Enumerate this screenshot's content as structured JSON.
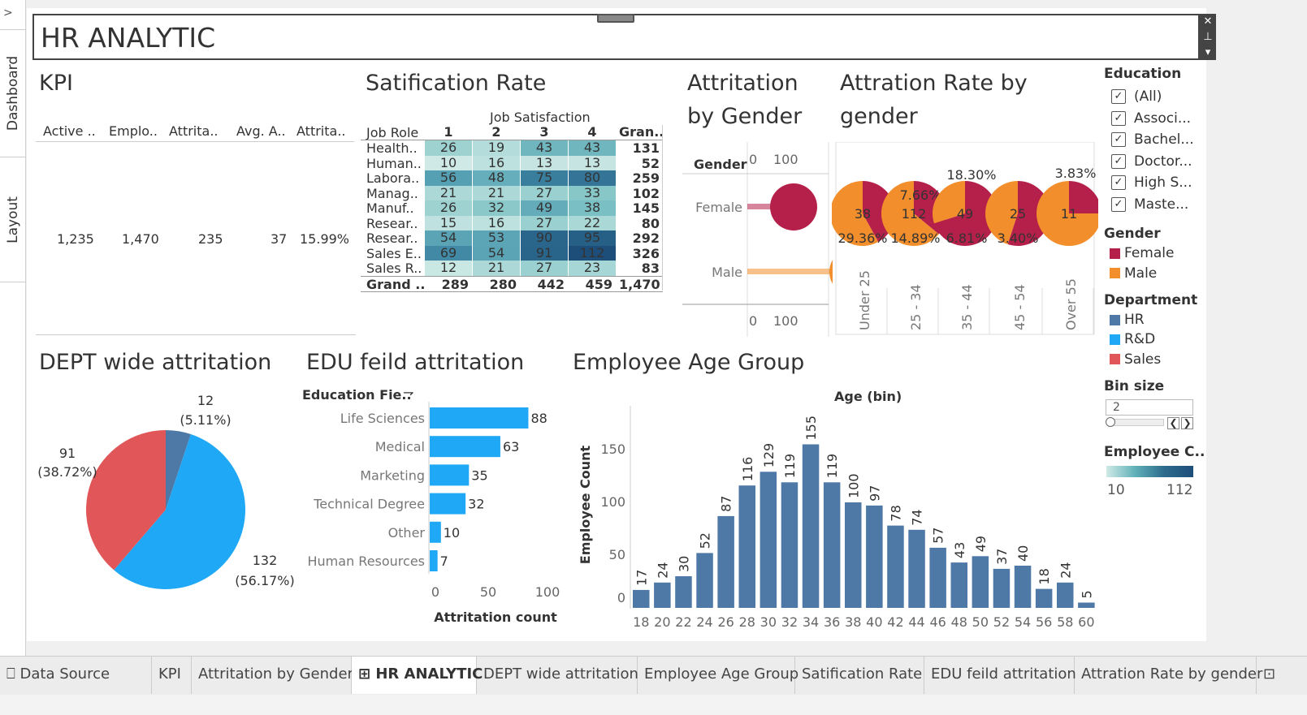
{
  "sidebar": {
    "chevron": ">",
    "tabs": [
      "Dashboard",
      "Layout"
    ]
  },
  "title": "HR ANALYTIC",
  "kpi": {
    "title": "KPI",
    "headers": [
      "Active ..",
      "Emplo..",
      "Attrita..",
      "Avg. A..",
      "Attrita.."
    ],
    "values": [
      "1,235",
      "1,470",
      "235",
      "37",
      "15.99%"
    ]
  },
  "satisfaction": {
    "title": "Satification Rate",
    "col_header": "Job Satisfaction",
    "row_header": "Job Role",
    "columns": [
      "1",
      "2",
      "3",
      "4",
      "Gran.."
    ],
    "rows": [
      {
        "label": "Health..",
        "values": [
          26,
          19,
          43,
          43
        ],
        "total": "131"
      },
      {
        "label": "Human..",
        "values": [
          10,
          16,
          13,
          13
        ],
        "total": "52"
      },
      {
        "label": "Labora..",
        "values": [
          56,
          48,
          75,
          80
        ],
        "total": "259"
      },
      {
        "label": "Manag..",
        "values": [
          21,
          21,
          27,
          33
        ],
        "total": "102"
      },
      {
        "label": "Manuf..",
        "values": [
          26,
          32,
          49,
          38
        ],
        "total": "145"
      },
      {
        "label": "Resear..",
        "values": [
          15,
          16,
          27,
          22
        ],
        "total": "80"
      },
      {
        "label": "Resear..",
        "values": [
          54,
          53,
          90,
          95
        ],
        "total": "292"
      },
      {
        "label": "Sales E..",
        "values": [
          69,
          54,
          91,
          112
        ],
        "total": "326"
      },
      {
        "label": "Sales R..",
        "values": [
          12,
          21,
          27,
          23
        ],
        "total": "83"
      }
    ],
    "grand": {
      "label": "Grand ..",
      "values": [
        "289",
        "280",
        "442",
        "459"
      ],
      "total": "1,470"
    }
  },
  "gender_attr": {
    "title_line1": "Attritation",
    "title_line2": "by Gender",
    "axis_title": "Gender",
    "rows": [
      "Female",
      "Male"
    ],
    "ticks": [
      "0",
      "100"
    ]
  },
  "age_gender": {
    "title_line1": "Attration Rate by",
    "title_line2": "gender",
    "groups": [
      {
        "label": "Under 25",
        "total": "38",
        "female_pct": "",
        "male_pct": "29.36%"
      },
      {
        "label": "25 - 34",
        "total": "112",
        "female_pct": "7.66%",
        "male_pct": "14.89%"
      },
      {
        "label": "35 - 44",
        "total": "49",
        "female_pct": "18.30%",
        "male_pct": "6.81%"
      },
      {
        "label": "45 - 54",
        "total": "25",
        "female_pct": "",
        "male_pct": "3.40%"
      },
      {
        "label": "Over 55",
        "total": "11",
        "female_pct": "3.83%",
        "male_pct": ""
      }
    ]
  },
  "dept": {
    "title": "DEPT wide attritation",
    "slices": [
      {
        "name": "HR",
        "value": 12,
        "pct": "(5.11%)",
        "color": "#4e79a7"
      },
      {
        "name": "R&D",
        "value": 132,
        "pct": "(56.17%)",
        "color": "#1fa8f5"
      },
      {
        "name": "Sales",
        "value": 91,
        "pct": "(38.72%)",
        "color": "#e15759"
      }
    ]
  },
  "edu": {
    "title": "EDU feild attritation",
    "axis_header": "Education Fie..",
    "xlabel": "Attritation count",
    "ticks": [
      "0",
      "50",
      "100"
    ],
    "bars": [
      {
        "label": "Life Sciences",
        "value": 88
      },
      {
        "label": "Medical",
        "value": 63
      },
      {
        "label": "Marketing",
        "value": 35
      },
      {
        "label": "Technical Degree",
        "value": 32
      },
      {
        "label": "Other",
        "value": 10
      },
      {
        "label": "Human Resources",
        "value": 7
      }
    ]
  },
  "age": {
    "title": "Employee Age Group",
    "header": "Age (bin)",
    "ylabel": "Employee Count",
    "yticks": [
      "0",
      "50",
      "100",
      "150"
    ]
  },
  "chart_data": [
    {
      "type": "bar",
      "title": "Employee Age Group",
      "xlabel": "Age (bin)",
      "ylabel": "Employee Count",
      "categories": [
        "18",
        "20",
        "22",
        "24",
        "26",
        "28",
        "30",
        "32",
        "34",
        "36",
        "38",
        "40",
        "42",
        "44",
        "46",
        "48",
        "50",
        "52",
        "54",
        "56",
        "58",
        "60"
      ],
      "values": [
        17,
        24,
        30,
        52,
        87,
        116,
        129,
        119,
        155,
        119,
        100,
        97,
        78,
        74,
        57,
        43,
        49,
        37,
        40,
        18,
        24,
        5
      ],
      "ylim": [
        0,
        170
      ]
    },
    {
      "type": "bar",
      "title": "EDU feild attritation",
      "categories": [
        "Life Sciences",
        "Medical",
        "Marketing",
        "Technical Degree",
        "Other",
        "Human Resources"
      ],
      "values": [
        88,
        63,
        35,
        32,
        10,
        7
      ],
      "xlabel": "Attritation count",
      "xlim": [
        0,
        110
      ]
    },
    {
      "type": "pie",
      "title": "DEPT wide attritation",
      "categories": [
        "HR",
        "R&D",
        "Sales"
      ],
      "values": [
        12,
        132,
        91
      ]
    },
    {
      "type": "bar",
      "title": "Attritation by Gender",
      "categories": [
        "Female",
        "Male"
      ],
      "values": [
        87,
        148
      ],
      "xlim": [
        0,
        150
      ]
    }
  ],
  "legend": {
    "education_title": "Education",
    "education_items": [
      "(All)",
      "Associ...",
      "Bachel...",
      "Doctor...",
      "High S...",
      "Maste..."
    ],
    "gender_title": "Gender",
    "gender_items": [
      {
        "label": "Female",
        "color": "#b5204a"
      },
      {
        "label": "Male",
        "color": "#f28e2b"
      }
    ],
    "department_title": "Department",
    "department_items": [
      {
        "label": "HR",
        "color": "#4e79a7"
      },
      {
        "label": "R&D",
        "color": "#1fa8f5"
      },
      {
        "label": "Sales",
        "color": "#e15759"
      }
    ],
    "bin_title": "Bin size",
    "bin_value": "2",
    "emp_title": "Employee C..",
    "emp_min": "10",
    "emp_max": "112"
  },
  "tabs": [
    "Data Source",
    "KPI",
    "Attritation by Gender",
    "HR ANALYTIC",
    "DEPT wide attritation",
    "Employee Age Group",
    "Satification Rate",
    "EDU feild attritation",
    "Attration Rate by gender"
  ],
  "active_tab": "HR ANALYTIC",
  "colors": {
    "bar": "#4e79a7",
    "edu_bar": "#1fa8f5",
    "female": "#b5204a",
    "male": "#f28e2b"
  }
}
